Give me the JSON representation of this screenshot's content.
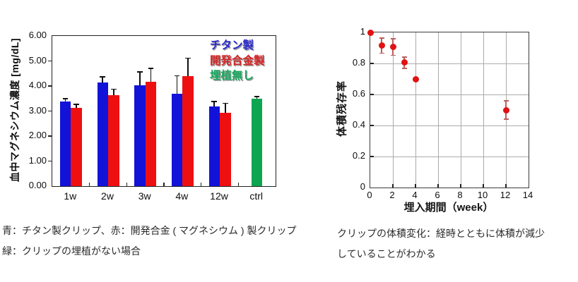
{
  "chart_data": [
    {
      "type": "bar",
      "title": "",
      "ylabel": "血中マグネシウム濃度 [mg/dL]",
      "xlabel": "",
      "ylim": [
        0,
        6
      ],
      "yticks": [
        0,
        1,
        2,
        3,
        4,
        5,
        6
      ],
      "ytick_labels": [
        "0.00",
        "1.00",
        "2.00",
        "3.00",
        "4.00",
        "5.00",
        "6.00"
      ],
      "categories": [
        "1w",
        "2w",
        "3w",
        "4w",
        "12w",
        "ctrl"
      ],
      "grid": false,
      "legend_position": "top-right-inside",
      "frame_color": "#222222",
      "errorbar_color": "#101010",
      "series": [
        {
          "name": "チタン製",
          "color": "#1212d9",
          "legend_color": "#2a2ad0",
          "values": [
            3.37,
            4.13,
            4.03,
            3.69,
            3.17,
            null
          ],
          "errors": [
            0.1,
            0.21,
            0.51,
            0.7,
            0.19,
            null
          ]
        },
        {
          "name": "開発合金製",
          "color": "#ee1010",
          "legend_color": "#d62323",
          "values": [
            3.13,
            3.64,
            4.16,
            4.39,
            2.93,
            null
          ],
          "errors": [
            0.12,
            0.21,
            0.52,
            0.7,
            0.36,
            null
          ]
        },
        {
          "name": "埋植無し",
          "color": "#0da550",
          "legend_color": "#17a85d",
          "values": [
            null,
            null,
            null,
            null,
            null,
            3.48
          ],
          "errors": [
            null,
            null,
            null,
            null,
            null,
            0.08
          ]
        }
      ]
    },
    {
      "type": "scatter",
      "title": "",
      "ylabel": "体積残存率",
      "xlabel": "埋入期間（week）",
      "xlim": [
        0,
        14
      ],
      "ylim": [
        0,
        1
      ],
      "xticks": [
        0,
        2,
        4,
        6,
        8,
        10,
        12,
        14
      ],
      "xtick_labels": [
        "0",
        "2",
        "4",
        "6",
        "8",
        "10",
        "12",
        "14"
      ],
      "yticks": [
        0,
        0.2,
        0.4,
        0.6,
        0.8,
        1
      ],
      "ytick_labels": [
        "0",
        "0.2",
        "0.4",
        "0.6",
        "0.8",
        "1"
      ],
      "grid": true,
      "grid_color": "#ababab",
      "frame_color": "#3c3c3c",
      "marker_color": "#e01212",
      "errorbar_color": "#bb5e5e",
      "points": [
        {
          "x": 0,
          "y": 1.0,
          "err": 0
        },
        {
          "x": 1,
          "y": 0.915,
          "err": 0.045
        },
        {
          "x": 2,
          "y": 0.905,
          "err": 0.05
        },
        {
          "x": 3,
          "y": 0.805,
          "err": 0.033
        },
        {
          "x": 4,
          "y": 0.7,
          "err": 0
        },
        {
          "x": 12,
          "y": 0.5,
          "err": 0.055
        }
      ]
    }
  ],
  "captions": {
    "left_line1": "青：チタン製クリップ、赤：開発合金 ( マグネシウム ) 製クリップ",
    "left_line2": "緑：クリップの埋植がない場合",
    "right_line1": "クリップの体積変化：経時とともに体積が減少",
    "right_line2": "していることがわかる"
  }
}
